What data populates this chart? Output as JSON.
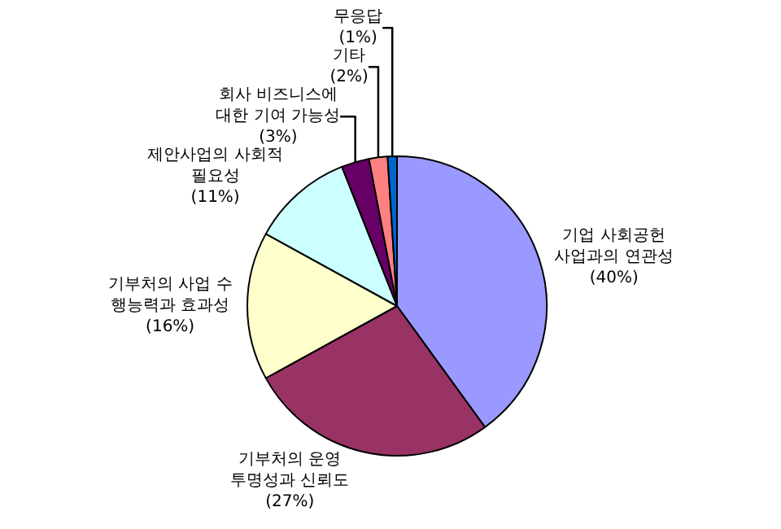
{
  "chart_data": {
    "type": "pie",
    "categories": [
      "기업 사회공헌\n사업과의 연관성",
      "기부처의 운영\n투명성과 신뢰도",
      "기부처의 사업 수\n행능력과 효과성",
      "제안사업의 사회적\n필요성",
      "회사 비즈니스에\n대한 기여 가능성",
      "기타",
      "무응답"
    ],
    "values": [
      40,
      27,
      16,
      11,
      3,
      2,
      1
    ],
    "value_labels": [
      "(40%)",
      "(27%)",
      "(16%)",
      "(11%)",
      "(3%)",
      "(2%)",
      "(1%)"
    ],
    "colors": [
      "#9999ff",
      "#993366",
      "#ffffcc",
      "#ccffff",
      "#660066",
      "#ff8080",
      "#0066cc"
    ],
    "legend": false
  }
}
